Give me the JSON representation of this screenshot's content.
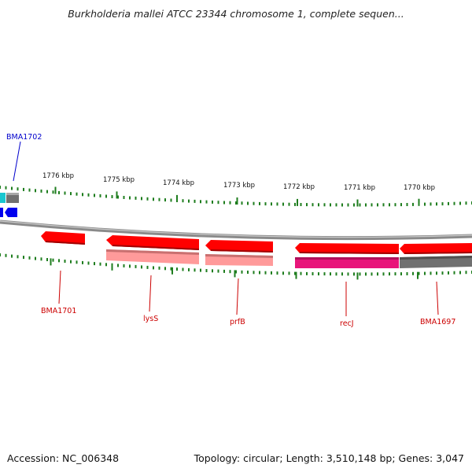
{
  "title": "Burkholderia mallei ATCC 23344 chromosome 1, complete sequen...",
  "footer": {
    "accession": "Accession: NC_006348",
    "summary": "Topology: circular; Length: 3,510,148 bp; Genes: 3,047"
  },
  "colors": {
    "backbone": "#8a8a8a",
    "tick": "#1e7d1e",
    "gene_red": "#ff0000",
    "gene_pink": "#ff9a9a",
    "gene_magenta": "#e8157a",
    "gene_gray": "#707070",
    "gene_blue": "#0000ee",
    "gene_cyan": "#19c6d0",
    "label_red": "#cc0000",
    "label_blue": "#0000cc"
  },
  "scale_labels": [
    "1776 kbp",
    "1775 kbp",
    "1774 kbp",
    "1773 kbp",
    "1772 kbp",
    "1771 kbp",
    "1770 kbp"
  ],
  "gene_labels": {
    "bma1702": "BMA1702",
    "bma1701": "BMA1701",
    "lyss": "lysS",
    "prfb": "prfB",
    "recj": "recJ",
    "bma1697": "BMA1697"
  }
}
